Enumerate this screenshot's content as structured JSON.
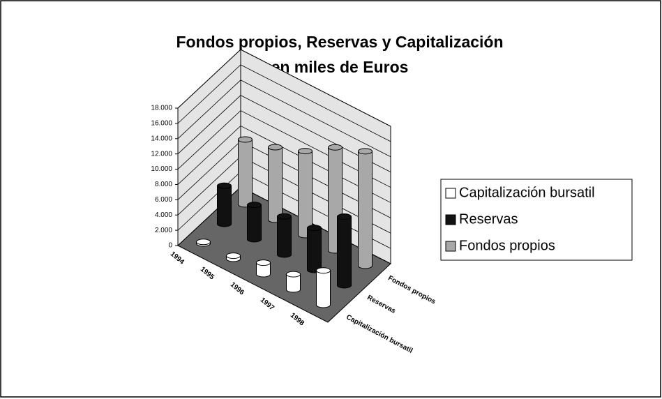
{
  "chart_data": {
    "type": "bar3d",
    "title": "Fondos propios, Reservas y Capitalización",
    "subtitle": "en miles de Euros",
    "categories": [
      "1994",
      "1995",
      "1996",
      "1997",
      "1998"
    ],
    "series": [
      {
        "name": "Capitalización bursatil",
        "color": "#ffffff",
        "values": [
          200,
          400,
          1500,
          2000,
          4500
        ]
      },
      {
        "name": "Reservas",
        "color": "#111111",
        "values": [
          5000,
          4500,
          5000,
          5500,
          9000
        ]
      },
      {
        "name": "Fondos propios",
        "color": "#a8a8a8",
        "values": [
          8500,
          9500,
          11000,
          13500,
          15000
        ]
      }
    ],
    "ylim": [
      0,
      18000
    ],
    "yticks": [
      0,
      {
        "value": 2000,
        "label": "2.000"
      },
      {
        "value": 4000,
        "label": "4.000"
      },
      {
        "value": 6000,
        "label": "6.000"
      },
      {
        "value": 8000,
        "label": "8.000"
      },
      {
        "value": 10000,
        "label": "10.000"
      },
      {
        "value": 12000,
        "label": "12.000"
      },
      {
        "value": 14000,
        "label": "14.000"
      },
      {
        "value": 16000,
        "label": "16.000"
      },
      {
        "value": 18000,
        "label": "18.000"
      }
    ],
    "grid": true
  }
}
